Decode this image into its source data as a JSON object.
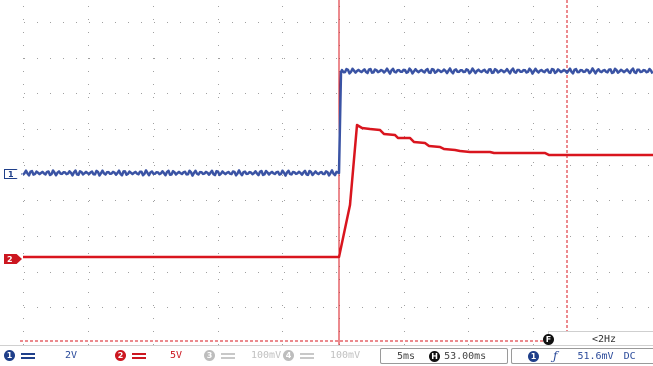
{
  "colors": {
    "ch1": "#3a53a4",
    "ch2": "#d9151e",
    "grid": "#9a9a9a",
    "cursor": "#d9151e"
  },
  "markers": {
    "ch1": "1",
    "ch2": "2"
  },
  "channels": [
    {
      "num": "1",
      "scale": "2V"
    },
    {
      "num": "2",
      "scale": "5V"
    },
    {
      "num": "3",
      "scale": "100mV"
    },
    {
      "num": "4",
      "scale": "100mV"
    }
  ],
  "timebase": "5ms",
  "horizontal": {
    "icon_letter": "H",
    "delay": "53.00ms"
  },
  "trigger": {
    "source": "1",
    "level": "51.6mV",
    "coupling": "DC"
  },
  "frequency": {
    "icon_letter": "F",
    "value": "<2Hz"
  }
}
